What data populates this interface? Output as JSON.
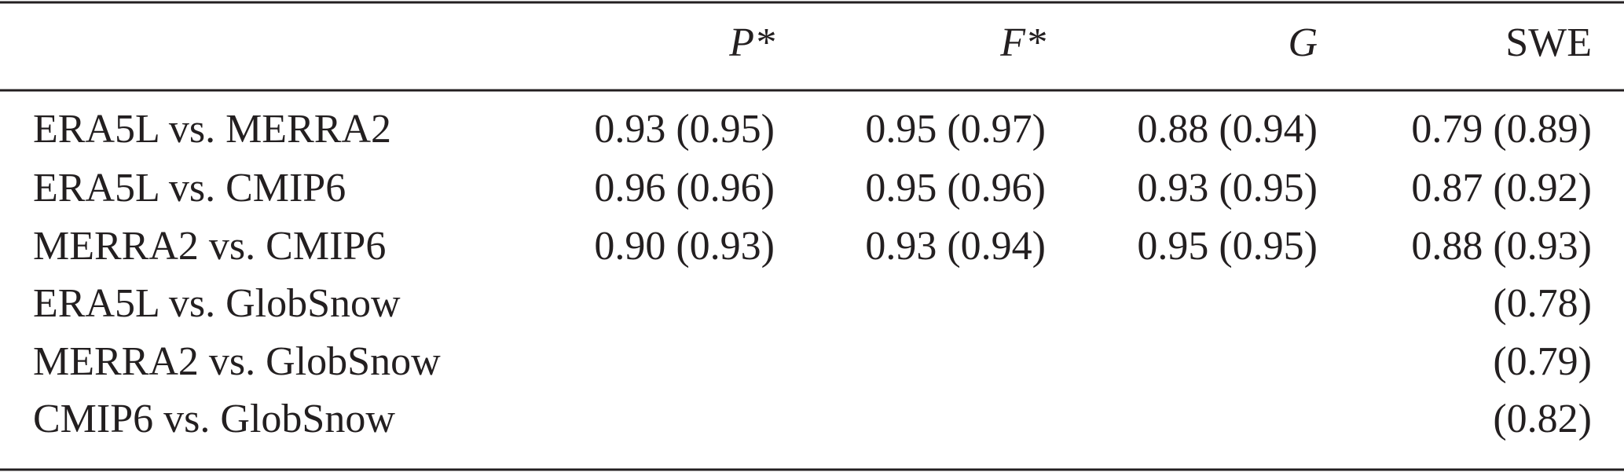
{
  "table": {
    "columns": [
      "P*",
      "F*",
      "G",
      "SWE"
    ],
    "rows": [
      {
        "label": "ERA5L vs. MERRA2",
        "cells": [
          "0.93 (0.95)",
          "0.95 (0.97)",
          "0.88 (0.94)",
          "0.79 (0.89)"
        ]
      },
      {
        "label": "ERA5L vs. CMIP6",
        "cells": [
          "0.96 (0.96)",
          "0.95 (0.96)",
          "0.93 (0.95)",
          "0.87 (0.92)"
        ]
      },
      {
        "label": "MERRA2 vs. CMIP6",
        "cells": [
          "0.90 (0.93)",
          "0.93 (0.94)",
          "0.95 (0.95)",
          "0.88 (0.93)"
        ]
      },
      {
        "label": "ERA5L vs. GlobSnow",
        "cells": [
          null,
          null,
          null,
          "(0.78)"
        ]
      },
      {
        "label": "MERRA2 vs. GlobSnow",
        "cells": [
          null,
          null,
          null,
          "(0.79)"
        ]
      },
      {
        "label": "CMIP6 vs. GlobSnow",
        "cells": [
          null,
          null,
          null,
          "(0.82)"
        ]
      }
    ]
  }
}
